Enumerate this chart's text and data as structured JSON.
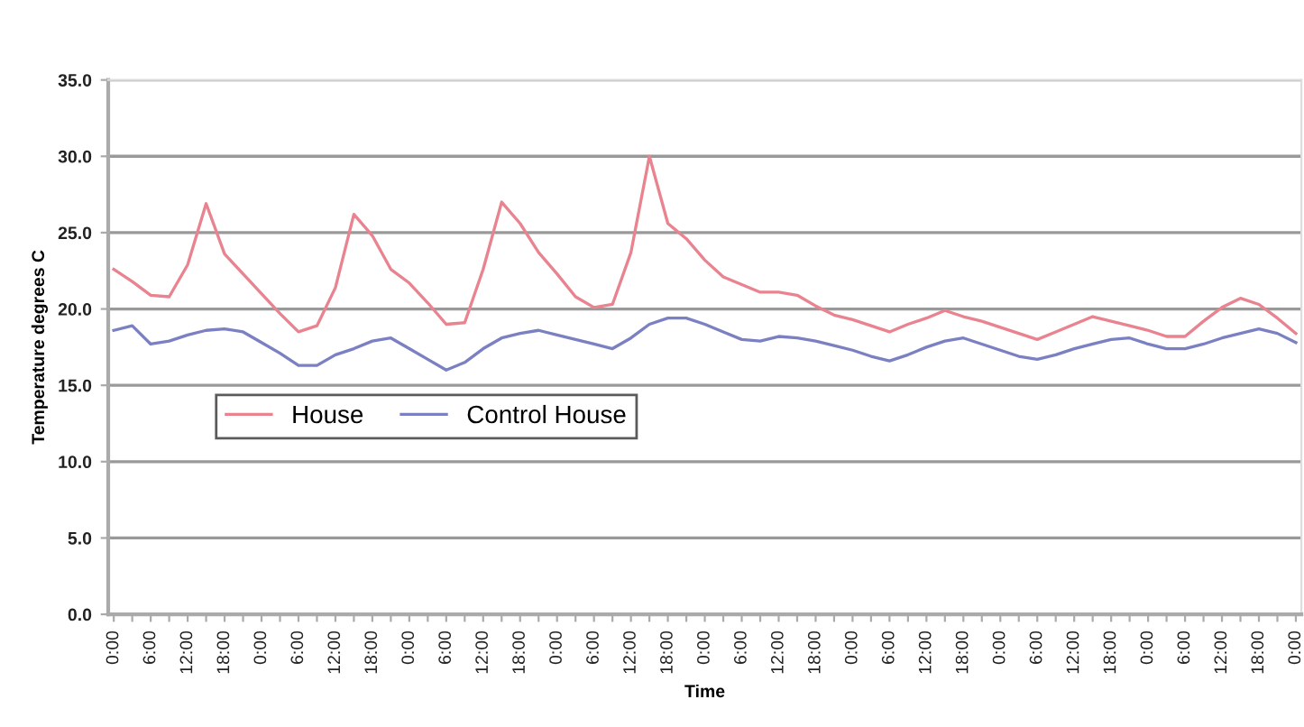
{
  "chart_data": {
    "type": "line",
    "xlabel": "Time",
    "ylabel": "Temperature degrees C",
    "categories": [
      "0:00",
      null,
      "6:00",
      null,
      "12:00",
      null,
      "18:00",
      null,
      "0:00",
      null,
      "6:00",
      null,
      "12:00",
      null,
      "18:00",
      null,
      "0:00",
      null,
      "6:00",
      null,
      "12:00",
      null,
      "18:00",
      null,
      "0:00",
      null,
      "6:00",
      null,
      "12:00",
      null,
      "18:00",
      null,
      "0:00",
      null,
      "6:00",
      null,
      "12:00",
      null,
      "18:00",
      null,
      "0:00",
      null,
      "6:00",
      null,
      "12:00",
      null,
      "18:00",
      null,
      "0:00",
      null,
      "6:00",
      null,
      "12:00",
      null,
      "18:00",
      null,
      "0:00",
      null,
      "6:00",
      null,
      "12:00",
      null,
      "18:00",
      null,
      "0:00"
    ],
    "ylim": [
      0,
      35
    ],
    "yticks": [
      {
        "value": 0,
        "label": "0.0"
      },
      {
        "value": 5,
        "label": "5.0"
      },
      {
        "value": 10,
        "label": "10.0"
      },
      {
        "value": 15,
        "label": "15.0"
      },
      {
        "value": 20,
        "label": "20.0"
      },
      {
        "value": 25,
        "label": "25.0"
      },
      {
        "value": 30,
        "label": "30.0"
      },
      {
        "value": 35,
        "label": "35.0"
      }
    ],
    "grid": "y",
    "legend": "left",
    "marker": "none",
    "line_style": "solid",
    "series": [
      {
        "name": "House",
        "color": "#e8838f",
        "values": [
          22.6,
          21.8,
          20.9,
          20.8,
          22.9,
          26.9,
          23.6,
          22.3,
          21.0,
          19.7,
          18.5,
          18.9,
          21.4,
          26.2,
          24.8,
          22.6,
          21.7,
          20.4,
          19.0,
          19.1,
          22.6,
          27.0,
          25.6,
          23.7,
          22.3,
          20.8,
          20.1,
          20.3,
          23.7,
          30.0,
          25.6,
          24.6,
          23.2,
          22.1,
          21.6,
          21.1,
          21.1,
          20.9,
          20.2,
          19.6,
          19.3,
          18.9,
          18.5,
          19.0,
          19.4,
          19.9,
          19.5,
          19.2,
          18.8,
          18.4,
          18.0,
          18.5,
          19.0,
          19.5,
          19.2,
          18.9,
          18.6,
          18.2,
          18.2,
          19.2,
          20.1,
          20.7,
          20.3,
          19.4,
          18.4
        ]
      },
      {
        "name": "Control House",
        "color": "#7b80c2",
        "values": [
          18.6,
          18.9,
          17.7,
          17.9,
          18.3,
          18.6,
          18.7,
          18.5,
          17.8,
          17.1,
          16.3,
          16.3,
          17.0,
          17.4,
          17.9,
          18.1,
          17.4,
          16.7,
          16.0,
          16.5,
          17.4,
          18.1,
          18.4,
          18.6,
          18.3,
          18.0,
          17.7,
          17.4,
          18.1,
          19.0,
          19.4,
          19.4,
          19.0,
          18.5,
          18.0,
          17.9,
          18.2,
          18.1,
          17.9,
          17.6,
          17.3,
          16.9,
          16.6,
          17.0,
          17.5,
          17.9,
          18.1,
          17.7,
          17.3,
          16.9,
          16.7,
          17.0,
          17.4,
          17.7,
          18.0,
          18.1,
          17.7,
          17.4,
          17.4,
          17.7,
          18.1,
          18.4,
          18.7,
          18.4,
          17.8
        ]
      }
    ]
  }
}
